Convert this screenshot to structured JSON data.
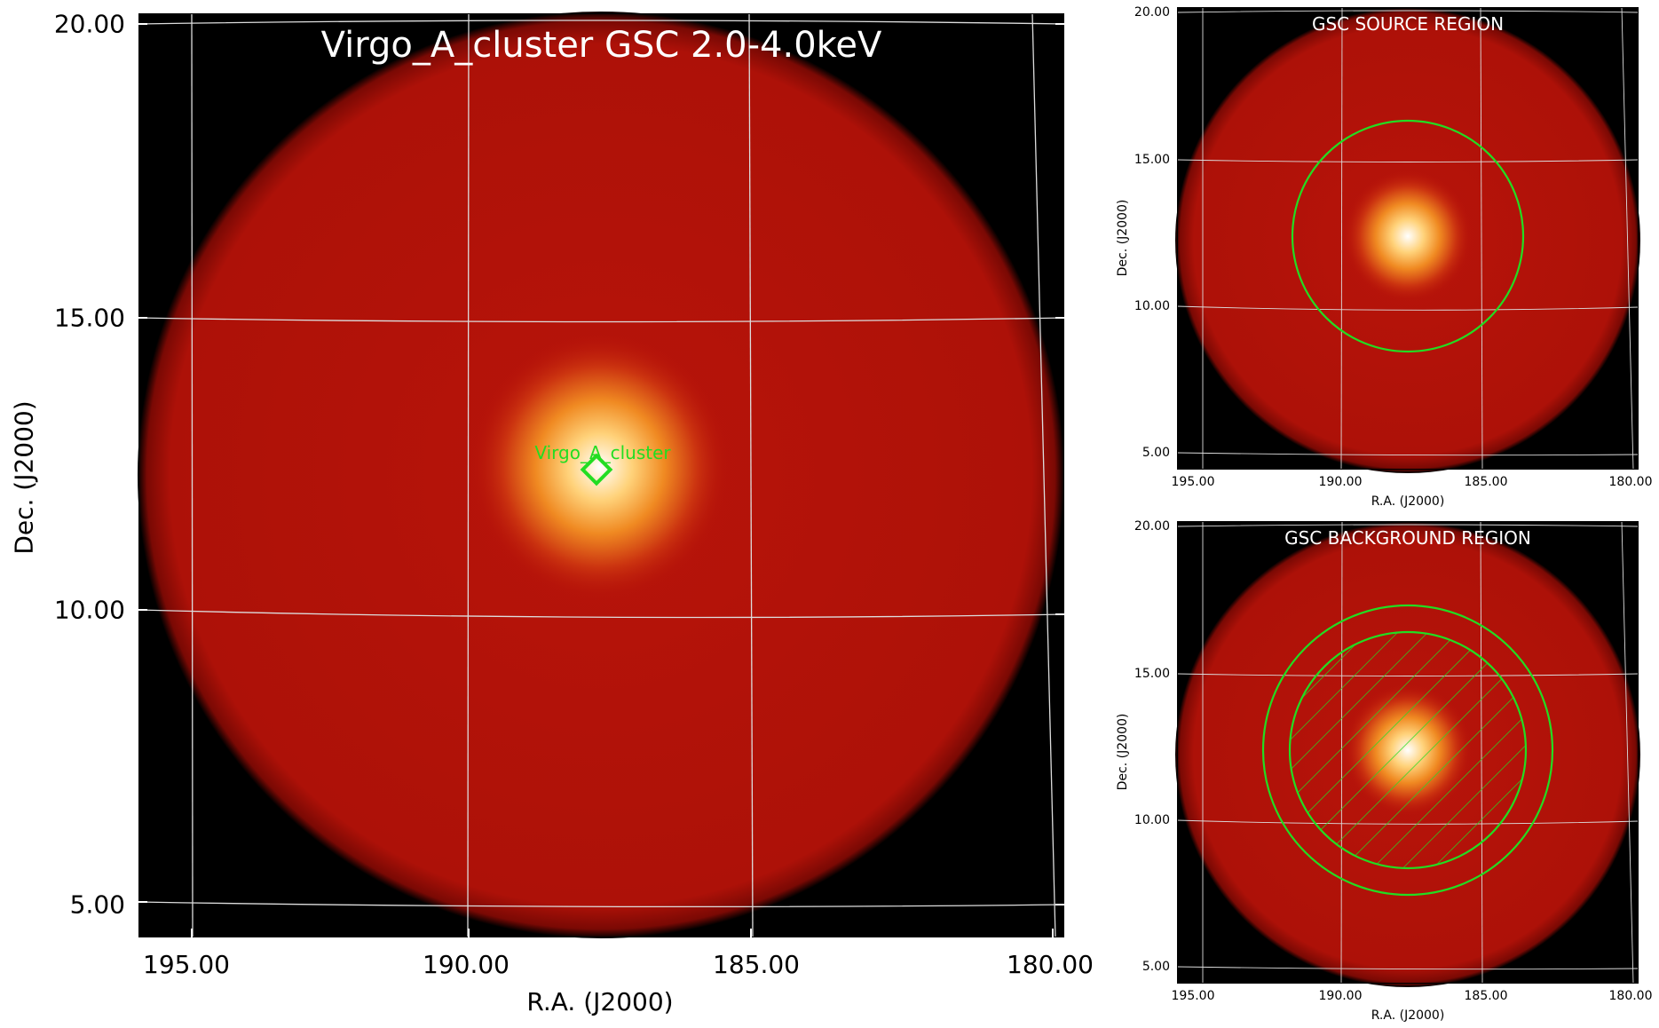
{
  "main": {
    "title": "Virgo_A_cluster GSC 2.0-4.0keV",
    "xlabel": "R.A. (J2000)",
    "ylabel": "Dec. (J2000)",
    "xticks": [
      "195.00",
      "190.00",
      "185.00",
      "180.00"
    ],
    "yticks": [
      "20.00",
      "15.00",
      "10.00",
      "5.00"
    ],
    "source_label": "Virgo_A_cluster"
  },
  "source_region": {
    "title": "GSC SOURCE REGION",
    "xlabel": "R.A. (J2000)",
    "ylabel": "Dec. (J2000)",
    "xticks": [
      "195.00",
      "190.00",
      "185.00",
      "180.00"
    ],
    "yticks": [
      "20.00",
      "15.00",
      "10.00",
      "5.00"
    ]
  },
  "background_region": {
    "title": "GSC BACKGROUND REGION",
    "xlabel": "R.A. (J2000)",
    "ylabel": "Dec. (J2000)",
    "xticks": [
      "195.00",
      "190.00",
      "185.00",
      "180.00"
    ],
    "yticks": [
      "20.00",
      "15.00",
      "10.00",
      "5.00"
    ]
  },
  "colors": {
    "sky_background": "#000000",
    "field_red": "#b01008",
    "source_core": "#ffffff",
    "region_green": "#22dd22",
    "grid": "#dddddd"
  }
}
